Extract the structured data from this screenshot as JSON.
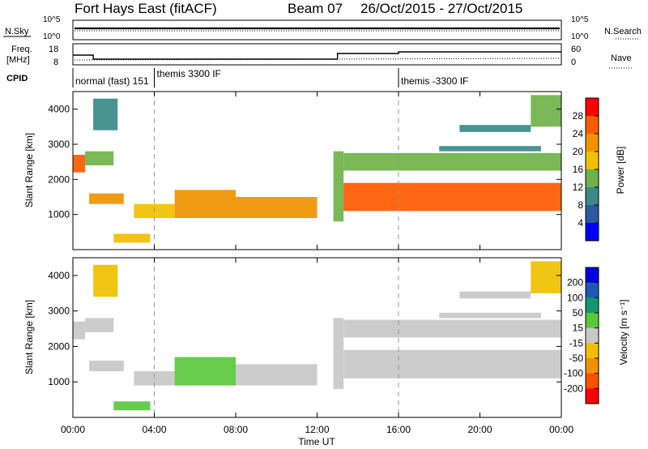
{
  "header": {
    "title": "Fort Hays East (fitACF)",
    "beam": "Beam 07",
    "date_range": "26/Oct/2015 - 27/Oct/2015"
  },
  "left_labels": {
    "nsky": "N.Sky",
    "freq_line1": "Freq.",
    "freq_line2": "[MHz]",
    "cpid": "CPID"
  },
  "right_labels": {
    "nsearch": "N.Search",
    "nave": "Nave"
  },
  "noise_axis": {
    "left_ticks": [
      "10^5",
      "10^0"
    ],
    "right_ticks": [
      "10^5",
      "10^0"
    ]
  },
  "freq_axis": {
    "left_ticks": [
      "18",
      "8"
    ],
    "right_ticks": [
      "60",
      "0"
    ]
  },
  "cpid": [
    {
      "label": "normal (fast) 151",
      "start_hour": 0
    },
    {
      "label": "themis 3300 IF",
      "start_hour": 4
    },
    {
      "label": "themis -3300 IF",
      "start_hour": 16
    }
  ],
  "freq_series": [
    {
      "from_hour": 0,
      "to_hour": 1,
      "value": 14
    },
    {
      "from_hour": 1,
      "to_hour": 13,
      "value": 11.5
    },
    {
      "from_hour": 13,
      "to_hour": 16,
      "value": 15
    },
    {
      "from_hour": 16,
      "to_hour": 24,
      "value": 16
    }
  ],
  "xaxis": {
    "label": "Time UT",
    "ticks": [
      "00:00",
      "04:00",
      "08:00",
      "12:00",
      "16:00",
      "20:00",
      "00:00"
    ]
  },
  "power_colorbar": {
    "label": "Power [dB]",
    "ticks": [
      "28",
      "24",
      "20",
      "16",
      "12",
      "8",
      "4"
    ],
    "colors": [
      "#ff0000",
      "#ff5a00",
      "#f09200",
      "#f0c000",
      "#6fb24a",
      "#3a8a8a",
      "#2b5aa0",
      "#0000ff"
    ]
  },
  "velocity_colorbar": {
    "label": "Velocity [m s⁻¹]",
    "ticks": [
      "200",
      "100",
      "50",
      "15",
      "-15",
      "-50",
      "-100",
      "-200"
    ],
    "colors": [
      "#0000e0",
      "#1e5ab4",
      "#14966e",
      "#5ac83c",
      "#c8c8c8",
      "#f0c000",
      "#f09000",
      "#ff5000",
      "#ff0000"
    ]
  },
  "chart_data": [
    {
      "type": "heatmap",
      "title": "Power",
      "xlabel": "Time UT",
      "ylabel": "Slant Range [km]",
      "xlim": [
        0,
        24
      ],
      "ylim": [
        0,
        4500
      ],
      "yticks": [
        "1000",
        "2000",
        "3000",
        "4000"
      ],
      "clim": [
        0,
        32
      ],
      "bands": [
        {
          "t0": 0.0,
          "t1": 0.6,
          "r_lo": 2200,
          "r_hi": 2700,
          "value": 26
        },
        {
          "t0": 0.6,
          "t1": 2.0,
          "r_lo": 2400,
          "r_hi": 2800,
          "value": 14
        },
        {
          "t0": 0.8,
          "t1": 2.5,
          "r_lo": 1300,
          "r_hi": 1600,
          "value": 24
        },
        {
          "t0": 1.0,
          "t1": 2.2,
          "r_lo": 3400,
          "r_hi": 4300,
          "value": 9
        },
        {
          "t0": 2.0,
          "t1": 3.8,
          "r_lo": 200,
          "r_hi": 450,
          "value": 18
        },
        {
          "t0": 3.0,
          "t1": 5.0,
          "r_lo": 900,
          "r_hi": 1300,
          "value": 17
        },
        {
          "t0": 5.0,
          "t1": 8.0,
          "r_lo": 900,
          "r_hi": 1700,
          "value": 24
        },
        {
          "t0": 8.0,
          "t1": 12.0,
          "r_lo": 900,
          "r_hi": 1500,
          "value": 22
        },
        {
          "t0": 12.8,
          "t1": 13.3,
          "r_lo": 800,
          "r_hi": 2800,
          "value": 14
        },
        {
          "t0": 13.3,
          "t1": 24.0,
          "r_lo": 1100,
          "r_hi": 1900,
          "value": 28
        },
        {
          "t0": 13.3,
          "t1": 24.0,
          "r_lo": 2250,
          "r_hi": 2750,
          "value": 13
        },
        {
          "t0": 18.0,
          "t1": 23.0,
          "r_lo": 2800,
          "r_hi": 2950,
          "value": 9
        },
        {
          "t0": 19.0,
          "t1": 22.5,
          "r_lo": 3350,
          "r_hi": 3550,
          "value": 12
        },
        {
          "t0": 22.5,
          "t1": 24.0,
          "r_lo": 3500,
          "r_hi": 4400,
          "value": 14
        }
      ]
    },
    {
      "type": "heatmap",
      "title": "Velocity",
      "xlabel": "Time UT",
      "ylabel": "Slant Range [km]",
      "xlim": [
        0,
        24
      ],
      "ylim": [
        0,
        4500
      ],
      "yticks": [
        "1000",
        "2000",
        "3000",
        "4000"
      ],
      "clim": [
        -250,
        250
      ],
      "bands": [
        {
          "t0": 0.0,
          "t1": 0.6,
          "r_lo": 2200,
          "r_hi": 2700,
          "value": 0
        },
        {
          "t0": 0.6,
          "t1": 2.0,
          "r_lo": 2400,
          "r_hi": 2800,
          "value": -5
        },
        {
          "t0": 0.8,
          "t1": 2.5,
          "r_lo": 1300,
          "r_hi": 1600,
          "value": 0
        },
        {
          "t0": 1.0,
          "t1": 2.2,
          "r_lo": 3400,
          "r_hi": 4300,
          "value": -40
        },
        {
          "t0": 2.0,
          "t1": 3.8,
          "r_lo": 200,
          "r_hi": 450,
          "value": 30
        },
        {
          "t0": 3.0,
          "t1": 5.0,
          "r_lo": 900,
          "r_hi": 1300,
          "value": 0
        },
        {
          "t0": 5.0,
          "t1": 8.0,
          "r_lo": 900,
          "r_hi": 1700,
          "value": 40
        },
        {
          "t0": 8.0,
          "t1": 12.0,
          "r_lo": 900,
          "r_hi": 1500,
          "value": 10
        },
        {
          "t0": 12.8,
          "t1": 13.3,
          "r_lo": 800,
          "r_hi": 2800,
          "value": 0
        },
        {
          "t0": 13.3,
          "t1": 24.0,
          "r_lo": 1100,
          "r_hi": 1900,
          "value": 0
        },
        {
          "t0": 13.3,
          "t1": 24.0,
          "r_lo": 2250,
          "r_hi": 2750,
          "value": 0
        },
        {
          "t0": 18.0,
          "t1": 23.0,
          "r_lo": 2800,
          "r_hi": 2950,
          "value": 0
        },
        {
          "t0": 19.0,
          "t1": 22.5,
          "r_lo": 3350,
          "r_hi": 3550,
          "value": -5
        },
        {
          "t0": 22.5,
          "t1": 24.0,
          "r_lo": 3500,
          "r_hi": 4400,
          "value": -30
        }
      ]
    }
  ]
}
